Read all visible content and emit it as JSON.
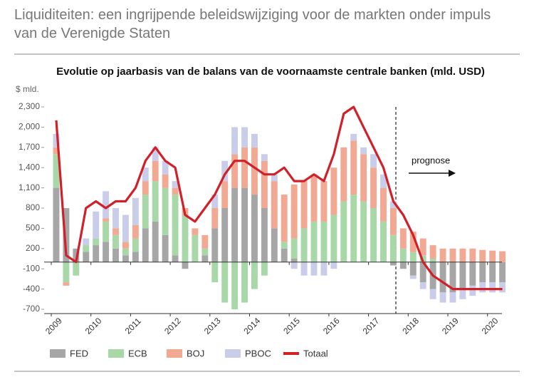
{
  "chart_data": {
    "type": "bar",
    "stacked": true,
    "header": "Liquiditeiten: een ingrijpende beleidswijziging voor de markten onder impuls van de Verenigde Staten",
    "title": "Evolutie op jaarbasis van de balans van de voornaamste centrale banken (mld. USD)",
    "y_label": "$ mld.",
    "annotation": "prognose",
    "categories": [
      "2009",
      null,
      null,
      null,
      "2010",
      null,
      null,
      null,
      "2011",
      null,
      null,
      null,
      "2012",
      null,
      null,
      null,
      "2013",
      null,
      null,
      null,
      "2014",
      null,
      null,
      null,
      "2015",
      null,
      null,
      null,
      "2016",
      null,
      null,
      null,
      "2017",
      null,
      null,
      null,
      "2018",
      null,
      null,
      null,
      "2019",
      null,
      null,
      null,
      "2020",
      null
    ],
    "ylim": [
      -700,
      2300
    ],
    "yticks": [
      -700,
      -400,
      -100,
      200,
      500,
      800,
      {
        "value": 1100,
        "label": "1,100"
      },
      {
        "value": 1400,
        "label": "1,400"
      },
      {
        "value": 1700,
        "label": "1,700"
      },
      {
        "value": 2000,
        "label": "2,000"
      },
      {
        "value": 2300,
        "label": "2,300"
      }
    ],
    "grid": false,
    "series": [
      {
        "name": "FED",
        "color": "#a6a6a6",
        "values": [
          1100,
          800,
          200,
          150,
          250,
          300,
          200,
          100,
          150,
          500,
          600,
          400,
          100,
          -100,
          0,
          100,
          500,
          800,
          1100,
          1100,
          1000,
          800,
          500,
          200,
          50,
          0,
          0,
          0,
          0,
          0,
          0,
          0,
          0,
          0,
          -50,
          -100,
          -200,
          -300,
          -400,
          -450,
          -450,
          -400,
          -350,
          -300,
          -300,
          -300
        ]
      },
      {
        "name": "ECB",
        "color": "#a8d8a8",
        "values": [
          500,
          -300,
          -200,
          100,
          100,
          300,
          200,
          100,
          200,
          500,
          600,
          700,
          900,
          700,
          400,
          100,
          -300,
          -600,
          -700,
          -600,
          -400,
          -200,
          0,
          100,
          300,
          500,
          600,
          600,
          700,
          900,
          1000,
          900,
          800,
          600,
          400,
          200,
          150,
          100,
          50,
          0,
          0,
          0,
          0,
          0,
          0,
          0
        ]
      },
      {
        "name": "BOJ",
        "color": "#f2a994",
        "values": [
          100,
          -50,
          0,
          0,
          0,
          50,
          100,
          100,
          200,
          200,
          300,
          200,
          100,
          100,
          100,
          200,
          300,
          400,
          500,
          600,
          700,
          700,
          700,
          700,
          800,
          700,
          700,
          600,
          700,
          800,
          800,
          700,
          600,
          500,
          400,
          300,
          300,
          250,
          200,
          200,
          200,
          200,
          200,
          180,
          170,
          160
        ]
      },
      {
        "name": "PBOC",
        "color": "#c9cde9",
        "values": [
          200,
          0,
          0,
          100,
          400,
          400,
          300,
          400,
          400,
          200,
          200,
          200,
          100,
          0,
          0,
          0,
          200,
          300,
          400,
          300,
          200,
          100,
          100,
          0,
          -100,
          -200,
          -200,
          -200,
          -100,
          0,
          100,
          100,
          200,
          200,
          100,
          0,
          -50,
          -100,
          -150,
          -150,
          -150,
          -150,
          -150,
          -150,
          -150,
          -150
        ]
      },
      {
        "name": "Totaal",
        "type": "line",
        "color": "#d0202a",
        "values": [
          2100,
          100,
          0,
          800,
          900,
          800,
          900,
          900,
          1100,
          1500,
          1700,
          1500,
          1400,
          700,
          600,
          800,
          1000,
          1300,
          1500,
          1500,
          1400,
          1300,
          1300,
          1400,
          1200,
          1200,
          1300,
          1200,
          1600,
          2200,
          2300,
          2000,
          1700,
          1400,
          900,
          700,
          400,
          0,
          -200,
          -300,
          -400,
          -400,
          -400,
          -400,
          -400,
          -400
        ]
      }
    ]
  }
}
